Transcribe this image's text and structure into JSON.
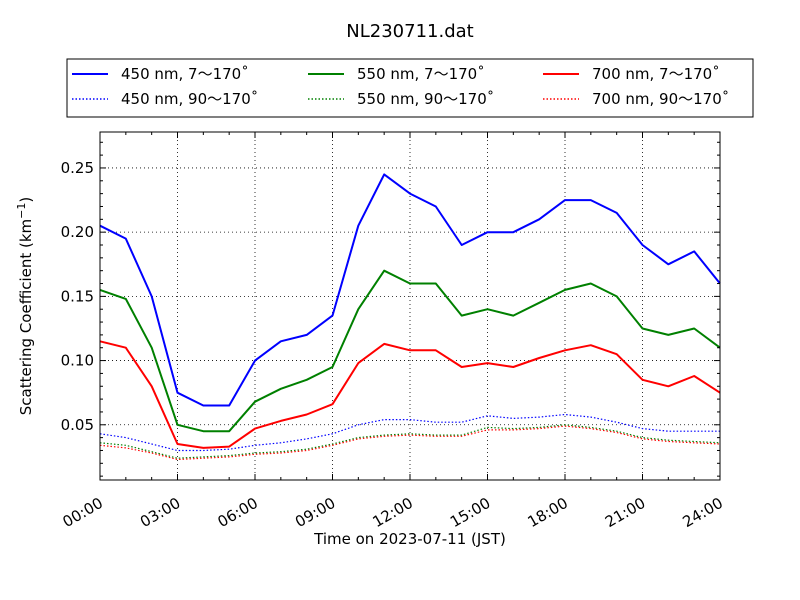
{
  "chart_data": {
    "type": "line",
    "title": "NL230711.dat",
    "xlabel": "Time on 2023-07-11 (JST)",
    "ylabel": "Scattering Coefficient (km",
    "ylabel_unit_exp": "−1",
    "ylabel_close": ")",
    "xlim": [
      "00:00",
      "24:00"
    ],
    "ylim": [
      0.007,
      0.278
    ],
    "grid": true,
    "legend_position": "top",
    "x_ticks": [
      {
        "label": "00:00",
        "hour": 0
      },
      {
        "label": "03:00",
        "hour": 3
      },
      {
        "label": "06:00",
        "hour": 6
      },
      {
        "label": "09:00",
        "hour": 9
      },
      {
        "label": "12:00",
        "hour": 12
      },
      {
        "label": "15:00",
        "hour": 15
      },
      {
        "label": "18:00",
        "hour": 18
      },
      {
        "label": "21:00",
        "hour": 21
      },
      {
        "label": "24:00",
        "hour": 24
      }
    ],
    "y_ticks": [
      {
        "label": "0.05",
        "value": 0.05
      },
      {
        "label": "0.10",
        "value": 0.1
      },
      {
        "label": "0.15",
        "value": 0.15
      },
      {
        "label": "0.20",
        "value": 0.2
      },
      {
        "label": "0.25",
        "value": 0.25
      }
    ],
    "legend": [
      {
        "label": "450 nm, 7～170˚"
      },
      {
        "label": "450 nm, 90～170˚"
      },
      {
        "label": "550 nm, 7～170˚"
      },
      {
        "label": "550 nm, 90～170˚"
      },
      {
        "label": "700 nm, 7～170˚"
      },
      {
        "label": "700 nm, 90～170˚"
      }
    ],
    "x": [
      "00:00",
      "01:00",
      "02:00",
      "03:00",
      "04:00",
      "05:00",
      "06:00",
      "07:00",
      "08:00",
      "09:00",
      "10:00",
      "11:00",
      "12:00",
      "13:00",
      "14:00",
      "15:00",
      "16:00",
      "17:00",
      "18:00",
      "19:00",
      "20:00",
      "21:00",
      "22:00",
      "23:00",
      "24:00"
    ],
    "series": [
      {
        "name": "450 nm, 7～170˚",
        "color": "#0000ff",
        "style": "solid",
        "values": [
          0.205,
          0.195,
          0.15,
          0.075,
          0.065,
          0.065,
          0.1,
          0.115,
          0.12,
          0.135,
          0.205,
          0.245,
          0.23,
          0.22,
          0.19,
          0.2,
          0.2,
          0.21,
          0.225,
          0.225,
          0.215,
          0.19,
          0.175,
          0.185,
          0.16
        ]
      },
      {
        "name": "450 nm, 90～170˚",
        "color": "#0000ff",
        "style": "dotted",
        "values": [
          0.043,
          0.04,
          0.035,
          0.03,
          0.03,
          0.031,
          0.034,
          0.036,
          0.039,
          0.043,
          0.05,
          0.054,
          0.054,
          0.052,
          0.052,
          0.057,
          0.055,
          0.056,
          0.058,
          0.056,
          0.052,
          0.047,
          0.045,
          0.045,
          0.045
        ]
      },
      {
        "name": "550 nm, 7～170˚",
        "color": "#008000",
        "style": "solid",
        "values": [
          0.155,
          0.148,
          0.11,
          0.05,
          0.045,
          0.045,
          0.068,
          0.078,
          0.085,
          0.095,
          0.14,
          0.17,
          0.16,
          0.16,
          0.135,
          0.14,
          0.135,
          0.145,
          0.155,
          0.16,
          0.15,
          0.125,
          0.12,
          0.125,
          0.11
        ]
      },
      {
        "name": "550 nm, 90～170˚",
        "color": "#008000",
        "style": "dotted",
        "values": [
          0.036,
          0.034,
          0.029,
          0.024,
          0.025,
          0.026,
          0.028,
          0.029,
          0.031,
          0.035,
          0.04,
          0.042,
          0.043,
          0.042,
          0.042,
          0.048,
          0.047,
          0.048,
          0.05,
          0.048,
          0.045,
          0.04,
          0.038,
          0.037,
          0.036
        ]
      },
      {
        "name": "700 nm, 7～170˚",
        "color": "#ff0000",
        "style": "solid",
        "values": [
          0.115,
          0.11,
          0.08,
          0.035,
          0.032,
          0.033,
          0.047,
          0.053,
          0.058,
          0.066,
          0.098,
          0.113,
          0.108,
          0.108,
          0.095,
          0.098,
          0.095,
          0.102,
          0.108,
          0.112,
          0.105,
          0.085,
          0.08,
          0.088,
          0.075
        ]
      },
      {
        "name": "700 nm, 90～170˚",
        "color": "#ff0000",
        "style": "dotted",
        "values": [
          0.034,
          0.032,
          0.028,
          0.023,
          0.024,
          0.025,
          0.027,
          0.028,
          0.03,
          0.034,
          0.039,
          0.041,
          0.042,
          0.041,
          0.041,
          0.046,
          0.046,
          0.047,
          0.049,
          0.047,
          0.044,
          0.039,
          0.037,
          0.036,
          0.035
        ]
      }
    ]
  }
}
